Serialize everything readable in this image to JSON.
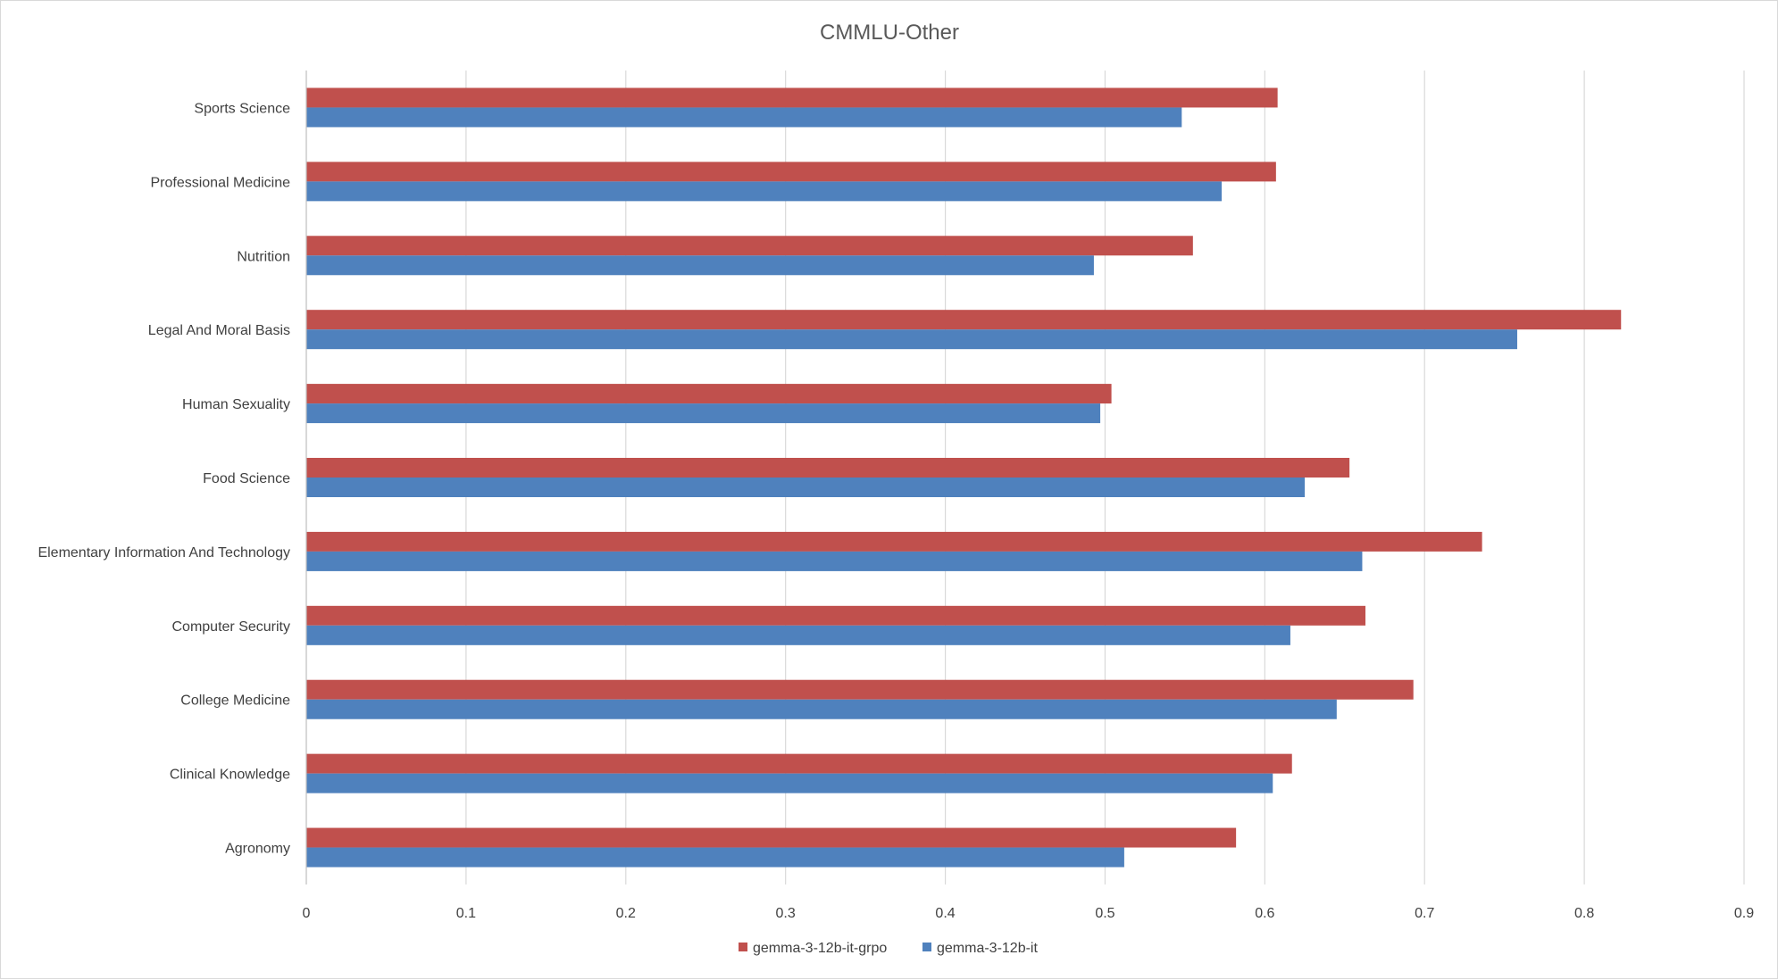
{
  "chart_data": {
    "type": "bar",
    "orientation": "horizontal",
    "title": "CMMLU-Other",
    "xlabel": "",
    "ylabel": "",
    "xlim": [
      0,
      0.9
    ],
    "x_ticks": [
      "0",
      "0.1",
      "0.2",
      "0.3",
      "0.4",
      "0.5",
      "0.6",
      "0.7",
      "0.8",
      "0.9"
    ],
    "grid": true,
    "legend_position": "bottom",
    "categories": [
      "Agronomy",
      "Clinical Knowledge",
      "College Medicine",
      "Computer Security",
      "Elementary Information And Technology",
      "Food Science",
      "Human Sexuality",
      "Legal And Moral Basis",
      "Nutrition",
      "Professional Medicine",
      "Sports Science"
    ],
    "series": [
      {
        "name": "gemma-3-12b-it-grpo",
        "color": "#c0504d",
        "values": [
          0.582,
          0.617,
          0.693,
          0.663,
          0.736,
          0.653,
          0.504,
          0.823,
          0.555,
          0.607,
          0.608
        ]
      },
      {
        "name": "gemma-3-12b-it",
        "color": "#4f81bd",
        "values": [
          0.512,
          0.605,
          0.645,
          0.616,
          0.661,
          0.625,
          0.497,
          0.758,
          0.493,
          0.573,
          0.548
        ]
      }
    ]
  }
}
